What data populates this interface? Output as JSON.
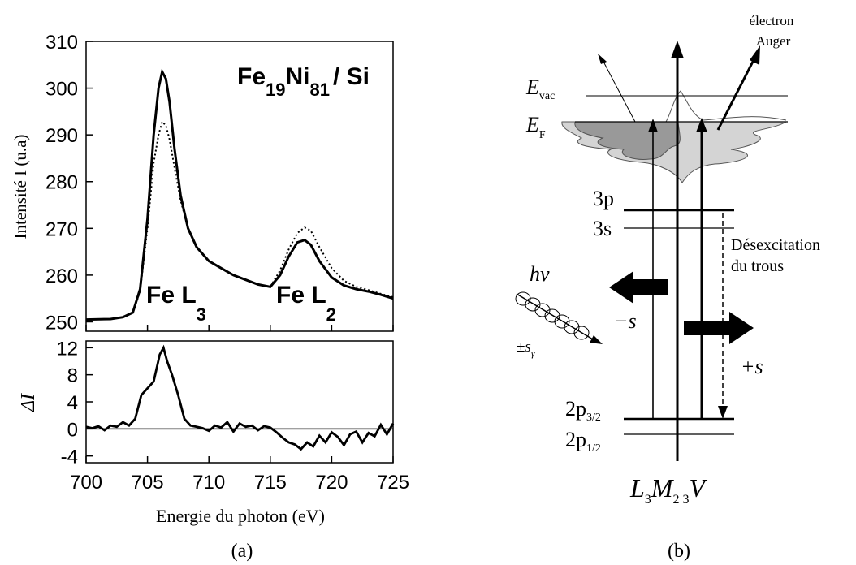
{
  "chart_data": [
    {
      "type": "line",
      "xlabel": "Energie du photon (eV)",
      "ylabel": "Intensité I (u.a)",
      "title": "Fe19Ni81 / Si",
      "title_parts": {
        "base1": "Fe",
        "sub1": "19",
        "base2": "Ni",
        "sub2": "81",
        "rest": "/ Si"
      },
      "xlim": [
        700,
        725
      ],
      "ylim": [
        248,
        310
      ],
      "xticks": [
        "700",
        "705",
        "710",
        "715",
        "720",
        "725"
      ],
      "yticks": [
        "250",
        "260",
        "270",
        "280",
        "290",
        "300",
        "310"
      ],
      "annotations": [
        {
          "base": "Fe L",
          "sub": "3"
        },
        {
          "base": "Fe L",
          "sub": "2"
        }
      ],
      "series": [
        {
          "style": "solid",
          "x": [
            700,
            702,
            703,
            703.8,
            704.4,
            705,
            705.5,
            705.9,
            706.2,
            706.5,
            706.8,
            707.2,
            707.7,
            708.3,
            709,
            710,
            711,
            712,
            713,
            714,
            715,
            715.8,
            716.5,
            717.2,
            717.8,
            718.3,
            719,
            720,
            721,
            722,
            723,
            724,
            725
          ],
          "y": [
            250.5,
            250.6,
            251,
            252,
            257,
            272,
            290,
            300,
            303.5,
            302,
            297,
            287,
            277,
            270,
            266,
            263,
            261.5,
            260,
            259,
            258,
            257.5,
            260,
            264,
            267,
            267.5,
            266.5,
            263,
            259.5,
            257.8,
            257,
            256.5,
            255.8,
            255
          ]
        },
        {
          "style": "dotted",
          "x": [
            700,
            702,
            703,
            703.8,
            704.4,
            705,
            705.5,
            705.9,
            706.2,
            706.5,
            706.8,
            707.2,
            707.7,
            708.3,
            709,
            710,
            711,
            712,
            713,
            714,
            715,
            715.8,
            716.5,
            717.2,
            717.8,
            718.3,
            719,
            720,
            721,
            722,
            723,
            724,
            725
          ],
          "y": [
            250.5,
            250.6,
            251,
            252,
            256.5,
            270,
            284,
            290,
            292.8,
            292,
            289,
            283,
            276,
            270,
            266,
            263,
            261.5,
            260,
            259,
            258,
            257.5,
            261,
            265.5,
            269,
            270.2,
            269.5,
            266,
            261.5,
            258.8,
            257.5,
            256.8,
            256,
            255.3
          ]
        }
      ]
    },
    {
      "type": "line",
      "ylabel": "ΔI",
      "xlim": [
        700,
        725
      ],
      "ylim": [
        -5,
        13
      ],
      "xticks": [
        "700",
        "705",
        "710",
        "715",
        "720",
        "725"
      ],
      "yticks": [
        "12",
        "8",
        "4",
        "0",
        "-4"
      ],
      "series": [
        {
          "style": "solid",
          "x": [
            700,
            700.5,
            701,
            701.5,
            702,
            702.5,
            703,
            703.5,
            704,
            704.5,
            705,
            705.5,
            706,
            706.3,
            706.6,
            707,
            707.5,
            708,
            708.5,
            709,
            709.5,
            710,
            710.5,
            711,
            711.5,
            712,
            712.5,
            713,
            713.5,
            714,
            714.5,
            715,
            715.5,
            716,
            716.5,
            717,
            717.5,
            718,
            718.5,
            719,
            719.5,
            720,
            720.5,
            721,
            721.5,
            722,
            722.5,
            723,
            723.5,
            724,
            724.5,
            725
          ],
          "y": [
            0.3,
            0.1,
            0.4,
            -0.2,
            0.5,
            0.3,
            1,
            0.5,
            1.5,
            5,
            6,
            7,
            11,
            12,
            10,
            8,
            5,
            1.5,
            0.5,
            0.3,
            0.1,
            -0.3,
            0.5,
            0.2,
            1,
            -0.4,
            0.8,
            0.3,
            0.5,
            -0.2,
            0.4,
            0.2,
            -0.5,
            -1.3,
            -2,
            -2.3,
            -3,
            -2,
            -2.6,
            -1,
            -2,
            -0.5,
            -1.2,
            -2.4,
            -0.8,
            -0.4,
            -2,
            -0.6,
            -1.1,
            0.6,
            -0.8,
            0.8
          ]
        }
      ]
    },
    {
      "type": "diagram",
      "levels": {
        "E_vac": {
          "base": "E",
          "sub": "vac"
        },
        "E_F": {
          "base": "E",
          "sub": "F"
        },
        "3p": "3p",
        "3s": "3s",
        "2p32": {
          "base": "2p",
          "sub": "3/2"
        },
        "2p12": {
          "base": "2p",
          "sub": "1/2"
        }
      },
      "electron_label_1": "électron",
      "electron_label_2": "Auger",
      "desexc_1": "Désexcitation",
      "desexc_2": "du trous",
      "photon": "hν",
      "spin_photon": {
        "base": "±s",
        "sub": "γ"
      },
      "spin_minus": "−s",
      "spin_plus": "+s",
      "process": {
        "L": "L",
        "L_sub": "3",
        "M": "M",
        "M_sub": "2 3",
        "V": "V"
      }
    }
  ],
  "captions": {
    "a": "(a)",
    "b": "(b)"
  }
}
